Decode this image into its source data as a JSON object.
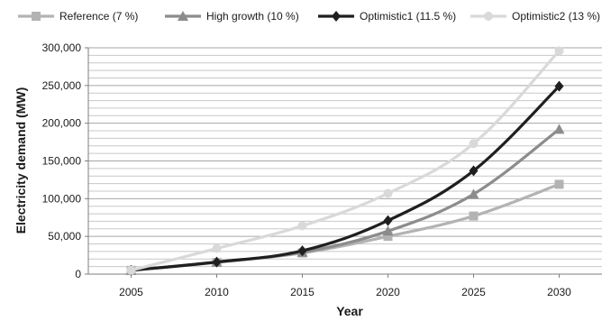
{
  "chart_data": {
    "type": "line",
    "title": "",
    "xlabel": "Year",
    "ylabel": "Electricity demand (MW)",
    "x": [
      2005,
      2010,
      2015,
      2020,
      2025,
      2030
    ],
    "x_tick_labels": [
      "2005",
      "2010",
      "2015",
      "2020",
      "2025",
      "2030"
    ],
    "ylim": [
      0,
      300000
    ],
    "y_ticks": [
      0,
      50000,
      100000,
      150000,
      200000,
      250000,
      300000
    ],
    "y_tick_labels": [
      "0",
      "50,000",
      "100,000",
      "150,000",
      "200,000",
      "250,000",
      "300,000"
    ],
    "grid": "horizontal",
    "legend_position": "top",
    "series": [
      {
        "name": "Reference (7 %)",
        "marker": "square",
        "color": "#b3b3b3",
        "values": [
          5000,
          15500,
          28000,
          50000,
          77000,
          119000
        ]
      },
      {
        "name": "High growth (10 %)",
        "marker": "triangle",
        "color": "#8c8c8c",
        "values": [
          5000,
          16000,
          29000,
          57000,
          106000,
          192000
        ]
      },
      {
        "name": "Optimistic1 (11.5 %)",
        "marker": "diamond",
        "color": "#1f1f1f",
        "values": [
          5000,
          16000,
          31000,
          71000,
          137000,
          249000
        ]
      },
      {
        "name": "Optimistic2 (13 %)",
        "marker": "circle",
        "color": "#d9d9d9",
        "values": [
          5000,
          34000,
          64000,
          107000,
          173000,
          296000
        ]
      }
    ]
  }
}
